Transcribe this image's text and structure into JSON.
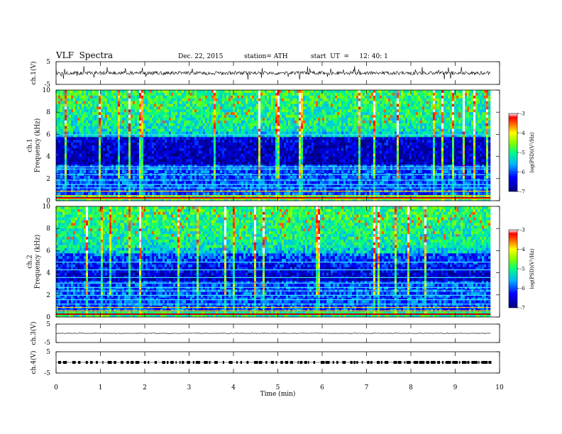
{
  "header": {
    "title": "VLF  Spectra",
    "date": "Dec. 22, 2015",
    "station": "station= ATH",
    "start": "start  UT  =     12: 40: 1"
  },
  "chart_data": [
    {
      "type": "line",
      "ylabel": "ch.1(V)",
      "ylim": [
        -5,
        5
      ],
      "yticks": [
        "5",
        "-5"
      ],
      "description_series": "ch.1 waveform centered near 0 V",
      "x_range_min": [
        0,
        9.8
      ]
    },
    {
      "type": "heatmap",
      "ylabel": "ch.1\nFrequency  (kHz)",
      "ylabel_lines": [
        "ch.1",
        "Frequency  (kHz)"
      ],
      "ylim": [
        0,
        10
      ],
      "yticks": [
        "0",
        "2",
        "4",
        "6",
        "8",
        "10"
      ],
      "colorbar": {
        "label": "log(PSD)(V²/Hz)",
        "range": [
          -7,
          -3
        ],
        "ticks": [
          "-7",
          "-6",
          "-5",
          "-4",
          "-3"
        ]
      }
    },
    {
      "type": "heatmap",
      "ylabel": "ch.2\nFrequency  (kHz)",
      "ylabel_lines": [
        "ch.2",
        "Frequency  (kHz)"
      ],
      "ylim": [
        0,
        10
      ],
      "yticks": [
        "0",
        "2",
        "4",
        "6",
        "8",
        "10"
      ],
      "colorbar": {
        "label": "log(PSD)(V²/Hz)",
        "range": [
          -7,
          -3
        ],
        "ticks": [
          "-7",
          "-6",
          "-5",
          "-4",
          "-3"
        ]
      }
    },
    {
      "type": "line",
      "ylabel": "ch.3(V)",
      "ylim": [
        -5,
        5
      ],
      "yticks": [
        "5",
        "-5"
      ]
    },
    {
      "type": "line",
      "ylabel": "ch.4(V)",
      "ylim": [
        -5,
        5
      ],
      "yticks": [
        "5",
        "-5"
      ]
    }
  ],
  "xaxis": {
    "label": "Time  (min)",
    "ticks": [
      "0",
      "1",
      "2",
      "3",
      "4",
      "5",
      "6",
      "7",
      "8",
      "9",
      "10"
    ],
    "range": [
      0,
      10
    ]
  }
}
